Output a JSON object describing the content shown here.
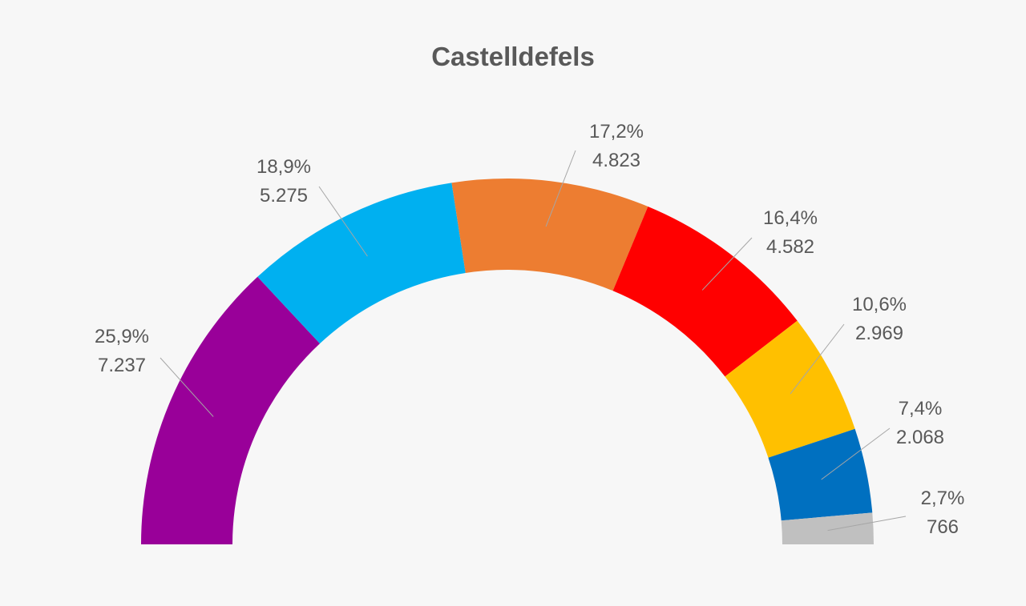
{
  "chart_data": {
    "type": "pie",
    "variant": "half-donut",
    "title": "Castelldefels",
    "slices": [
      {
        "percent_label": "25,9%",
        "votes_label": "7.237",
        "votes": 7237,
        "percent": 25.9,
        "color": "#990099"
      },
      {
        "percent_label": "18,9%",
        "votes_label": "5.275",
        "votes": 5275,
        "percent": 18.9,
        "color": "#00b0f0"
      },
      {
        "percent_label": "17,2%",
        "votes_label": "4.823",
        "votes": 4823,
        "percent": 17.2,
        "color": "#ed7d31"
      },
      {
        "percent_label": "16,4%",
        "votes_label": "4.582",
        "votes": 4582,
        "percent": 16.4,
        "color": "#ff0000"
      },
      {
        "percent_label": "10,6%",
        "votes_label": "2.969",
        "votes": 2969,
        "percent": 10.6,
        "color": "#ffc000"
      },
      {
        "percent_label": "7,4%",
        "votes_label": "2.068",
        "votes": 2068,
        "percent": 7.4,
        "color": "#0070c0"
      },
      {
        "percent_label": "2,7%",
        "votes_label": "766",
        "votes": 766,
        "percent": 2.7,
        "color": "#c0c0c0"
      }
    ]
  }
}
